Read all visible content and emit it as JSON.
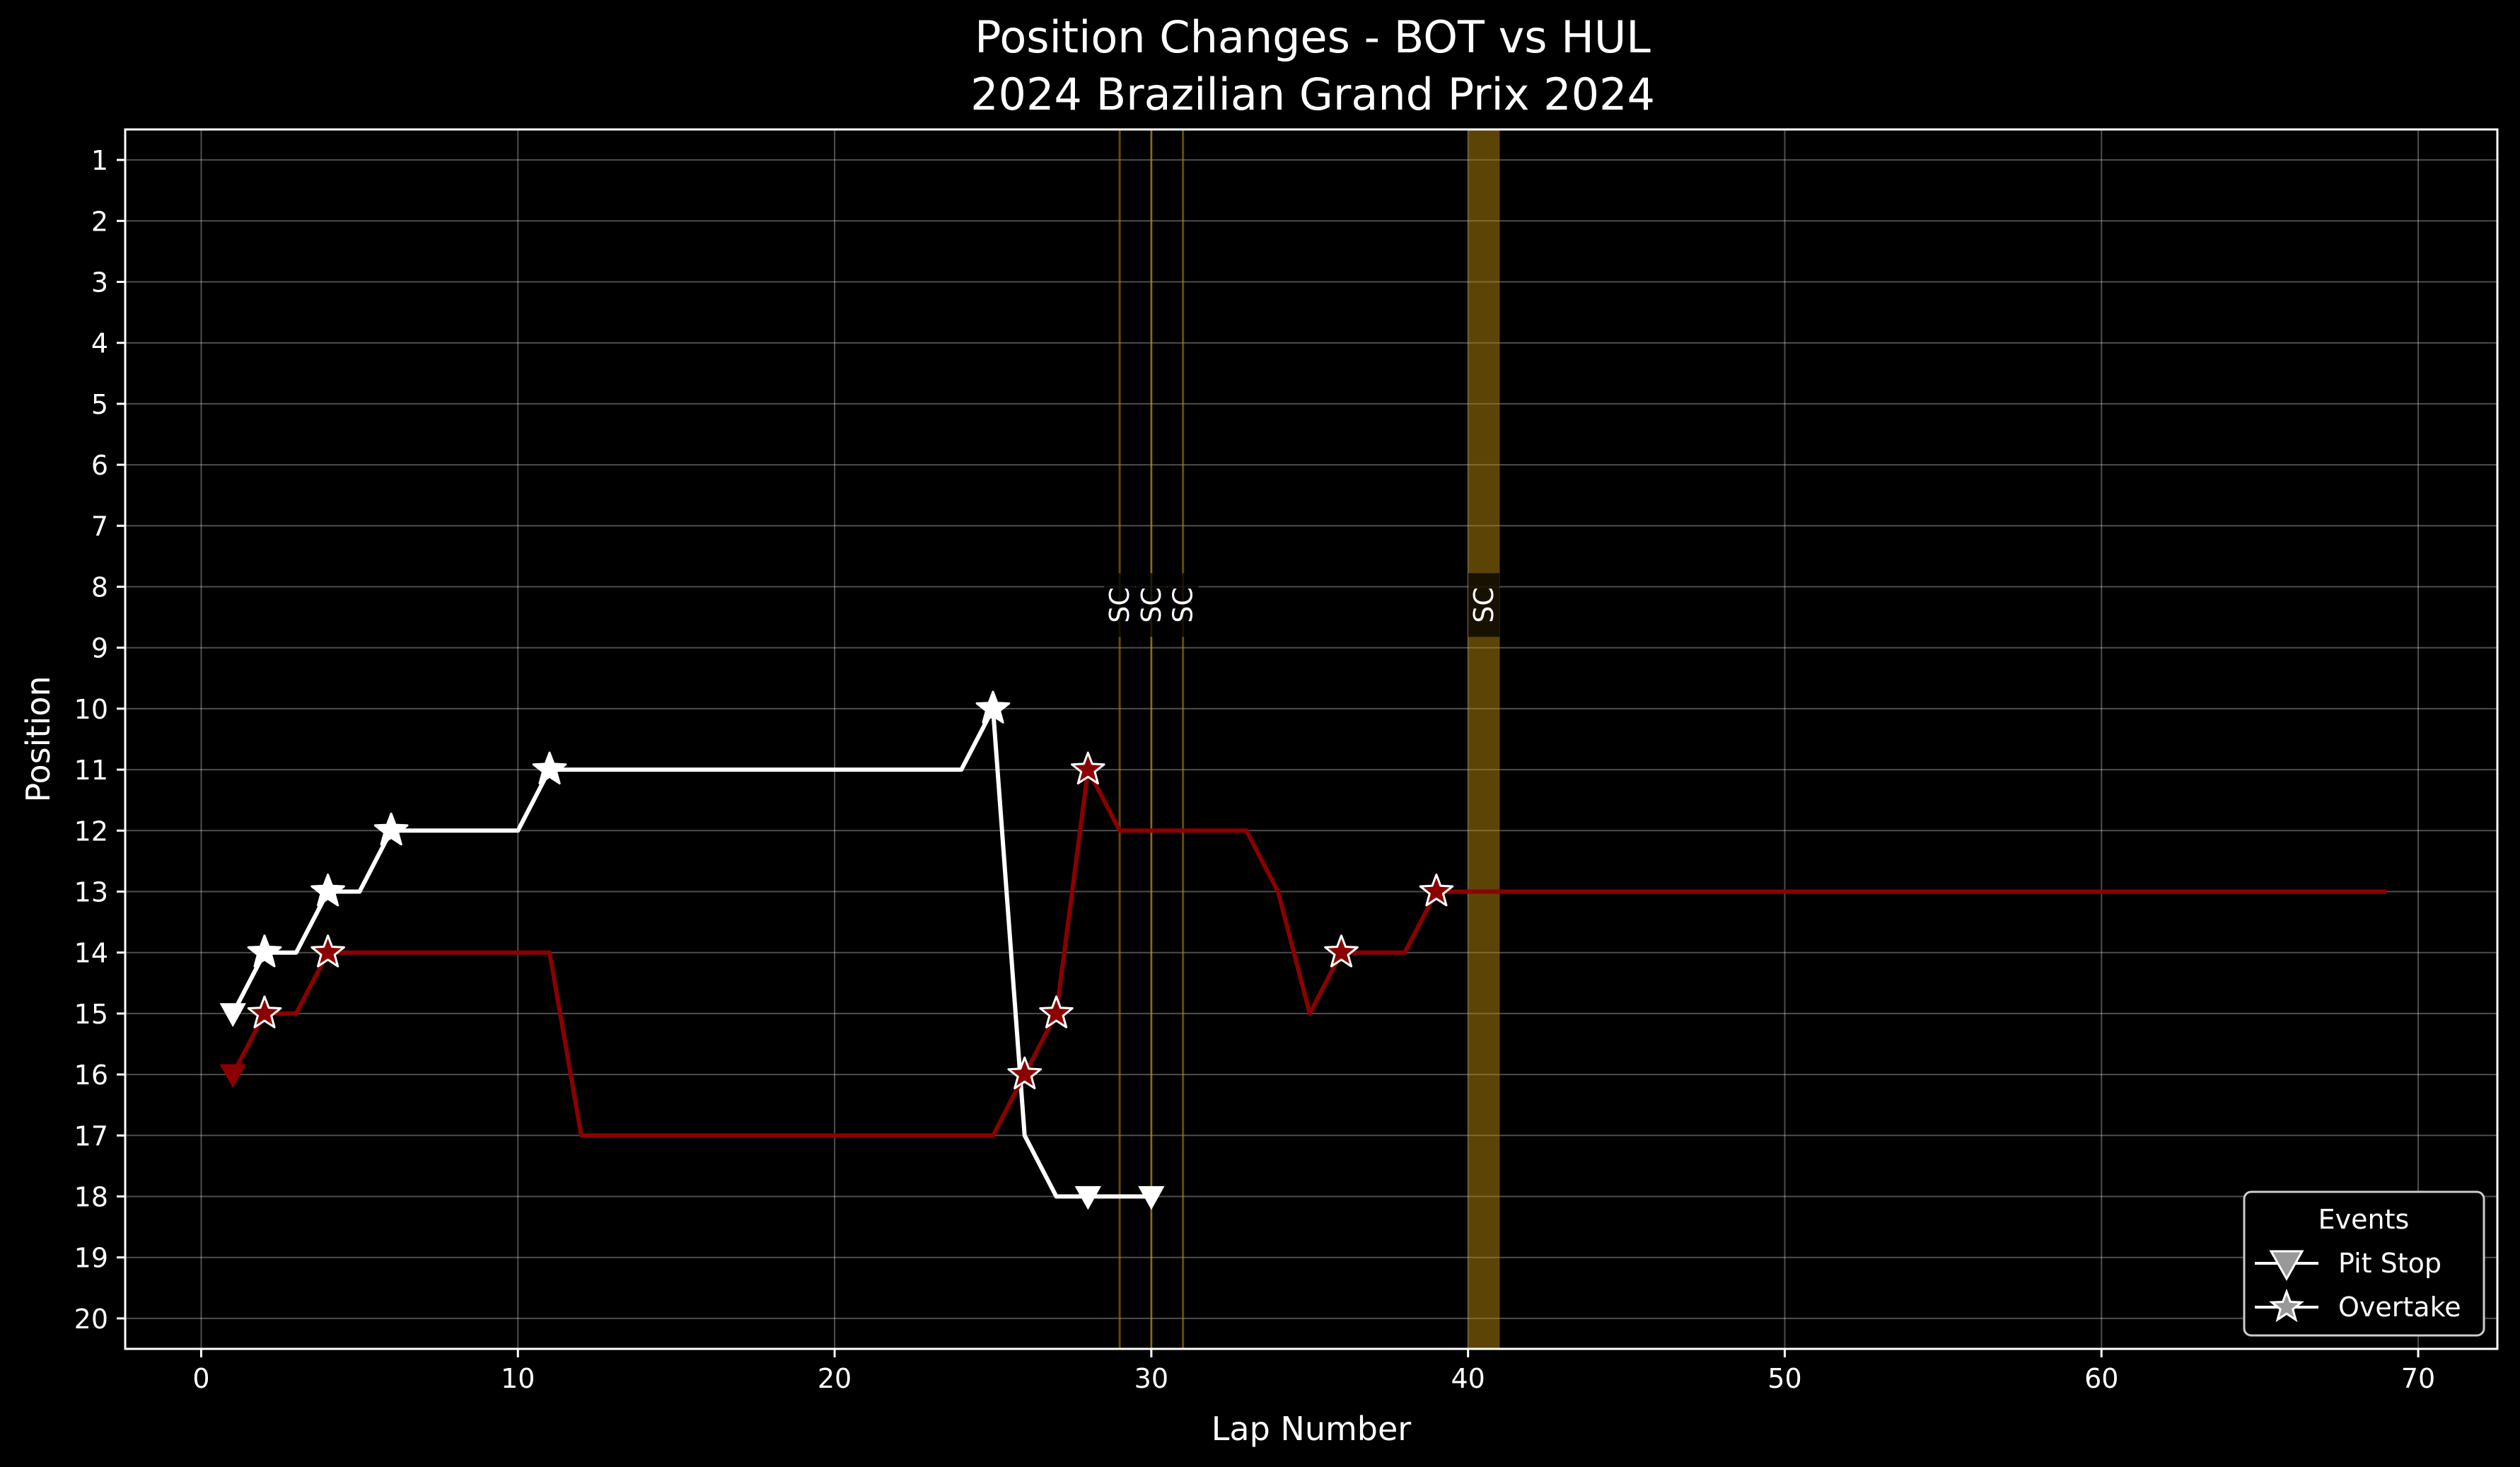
{
  "chart_data": {
    "type": "line",
    "title": "Position Changes - BOT vs HUL",
    "subtitle": "2024 Brazilian Grand Prix 2024",
    "xlabel": "Lap Number",
    "ylabel": "Position",
    "xlim": [
      -2.4,
      72.5
    ],
    "ylim": [
      20.5,
      0.5
    ],
    "x_ticks": [
      0,
      10,
      20,
      30,
      40,
      50,
      60,
      70
    ],
    "y_ticks": [
      1,
      2,
      3,
      4,
      5,
      6,
      7,
      8,
      9,
      10,
      11,
      12,
      13,
      14,
      15,
      16,
      17,
      18,
      19,
      20
    ],
    "y_inverted": true,
    "grid": true,
    "background": "#000000",
    "series": [
      {
        "color": "#ffffff",
        "points": [
          [
            1,
            15
          ],
          [
            2,
            14
          ],
          [
            3,
            14
          ],
          [
            4,
            13
          ],
          [
            5,
            13
          ],
          [
            6,
            12
          ],
          [
            7,
            12
          ],
          [
            8,
            12
          ],
          [
            9,
            12
          ],
          [
            10,
            12
          ],
          [
            11,
            11
          ],
          [
            12,
            11
          ],
          [
            13,
            11
          ],
          [
            14,
            11
          ],
          [
            15,
            11
          ],
          [
            16,
            11
          ],
          [
            17,
            11
          ],
          [
            18,
            11
          ],
          [
            19,
            11
          ],
          [
            20,
            11
          ],
          [
            21,
            11
          ],
          [
            22,
            11
          ],
          [
            23,
            11
          ],
          [
            24,
            11
          ],
          [
            25,
            10
          ],
          [
            26,
            17
          ],
          [
            27,
            18
          ],
          [
            28,
            18
          ],
          [
            29,
            18
          ],
          [
            30,
            18
          ]
        ],
        "pit_stops": [
          [
            1,
            15
          ],
          [
            28,
            18
          ],
          [
            30,
            18
          ]
        ],
        "overtakes": [
          [
            2,
            14
          ],
          [
            4,
            13
          ],
          [
            6,
            12
          ],
          [
            11,
            11
          ],
          [
            25,
            10
          ]
        ]
      },
      {
        "color": "#8b0000",
        "points": [
          [
            1,
            16
          ],
          [
            2,
            15
          ],
          [
            3,
            15
          ],
          [
            4,
            14
          ],
          [
            5,
            14
          ],
          [
            6,
            14
          ],
          [
            7,
            14
          ],
          [
            8,
            14
          ],
          [
            9,
            14
          ],
          [
            10,
            14
          ],
          [
            11,
            14
          ],
          [
            12,
            17
          ],
          [
            13,
            17
          ],
          [
            14,
            17
          ],
          [
            15,
            17
          ],
          [
            16,
            17
          ],
          [
            17,
            17
          ],
          [
            18,
            17
          ],
          [
            19,
            17
          ],
          [
            20,
            17
          ],
          [
            21,
            17
          ],
          [
            22,
            17
          ],
          [
            23,
            17
          ],
          [
            24,
            17
          ],
          [
            25,
            17
          ],
          [
            26,
            16
          ],
          [
            27,
            15
          ],
          [
            28,
            11
          ],
          [
            29,
            12
          ],
          [
            30,
            12
          ],
          [
            31,
            12
          ],
          [
            32,
            12
          ],
          [
            33,
            12
          ],
          [
            34,
            13
          ],
          [
            35,
            15
          ],
          [
            36,
            14
          ],
          [
            37,
            14
          ],
          [
            38,
            14
          ],
          [
            39,
            13
          ],
          [
            40,
            13
          ],
          [
            41,
            13
          ],
          [
            42,
            13
          ],
          [
            43,
            13
          ],
          [
            44,
            13
          ],
          [
            45,
            13
          ],
          [
            46,
            13
          ],
          [
            47,
            13
          ],
          [
            48,
            13
          ],
          [
            49,
            13
          ],
          [
            50,
            13
          ],
          [
            51,
            13
          ],
          [
            52,
            13
          ],
          [
            53,
            13
          ],
          [
            54,
            13
          ],
          [
            55,
            13
          ],
          [
            56,
            13
          ],
          [
            57,
            13
          ],
          [
            58,
            13
          ],
          [
            59,
            13
          ],
          [
            60,
            13
          ],
          [
            61,
            13
          ],
          [
            62,
            13
          ],
          [
            63,
            13
          ],
          [
            64,
            13
          ],
          [
            65,
            13
          ],
          [
            66,
            13
          ],
          [
            67,
            13
          ],
          [
            68,
            13
          ],
          [
            69,
            13
          ]
        ],
        "pit_stops": [
          [
            1,
            16
          ]
        ],
        "overtakes": [
          [
            2,
            15
          ],
          [
            4,
            14
          ],
          [
            26,
            16
          ],
          [
            27,
            15
          ],
          [
            28,
            11
          ],
          [
            36,
            14
          ],
          [
            39,
            13
          ]
        ]
      }
    ],
    "safety_car": {
      "label": "SC",
      "color": "#b8860b",
      "lines": [
        29,
        30,
        31
      ],
      "band": [
        40,
        41
      ],
      "label_y": 8.3
    },
    "legend": {
      "title": "Events",
      "position": "lower-right",
      "items": [
        {
          "label": "Pit Stop",
          "marker": "triangle-down"
        },
        {
          "label": "Overtake",
          "marker": "star"
        }
      ]
    }
  }
}
